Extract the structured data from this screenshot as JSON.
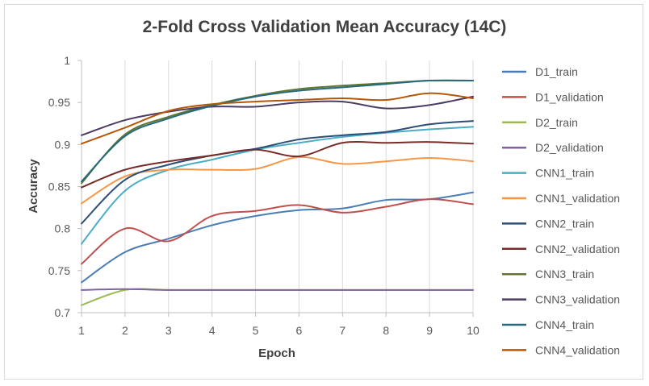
{
  "chart_data": {
    "type": "line",
    "title": "2-Fold Cross Validation Mean Accuracy (14C)",
    "xlabel": "Epoch",
    "ylabel": "Accuracy",
    "x": [
      1,
      2,
      3,
      4,
      5,
      6,
      7,
      8,
      9,
      10
    ],
    "xlim": [
      1,
      10
    ],
    "ylim": [
      0.7,
      1.0
    ],
    "yticks": [
      0.7,
      0.75,
      0.8,
      0.85,
      0.9,
      0.95,
      1.0
    ],
    "ytick_labels": [
      "0.7",
      "0.75",
      "0.8",
      "0.85",
      "0.9",
      "0.95",
      "1"
    ],
    "xtick_labels": [
      "1",
      "2",
      "3",
      "4",
      "5",
      "6",
      "7",
      "8",
      "9",
      "10"
    ],
    "grid": "vertical",
    "legend_position": "right",
    "series": [
      {
        "name": "D1_train",
        "color": "#4a7db6",
        "values": [
          0.736,
          0.772,
          0.788,
          0.804,
          0.815,
          0.822,
          0.824,
          0.834,
          0.835,
          0.843
        ]
      },
      {
        "name": "D1_validation",
        "color": "#c0504d",
        "values": [
          0.758,
          0.8,
          0.785,
          0.815,
          0.821,
          0.828,
          0.819,
          0.826,
          0.835,
          0.829
        ]
      },
      {
        "name": "D2_train",
        "color": "#9bbb59",
        "values": [
          0.709,
          0.727,
          0.727,
          0.727,
          0.727,
          0.727,
          0.727,
          0.727,
          0.727,
          0.727
        ]
      },
      {
        "name": "D2_validation",
        "color": "#8064a2",
        "values": [
          0.727,
          0.728,
          0.727,
          0.727,
          0.727,
          0.727,
          0.727,
          0.727,
          0.727,
          0.727
        ]
      },
      {
        "name": "CNN1_train",
        "color": "#4bacc6",
        "values": [
          0.782,
          0.845,
          0.87,
          0.882,
          0.894,
          0.902,
          0.909,
          0.914,
          0.918,
          0.921
        ]
      },
      {
        "name": "CNN1_validation",
        "color": "#f79646",
        "values": [
          0.83,
          0.862,
          0.87,
          0.87,
          0.871,
          0.885,
          0.877,
          0.88,
          0.884,
          0.88
        ]
      },
      {
        "name": "CNN2_train",
        "color": "#2c4d75",
        "values": [
          0.806,
          0.858,
          0.876,
          0.887,
          0.895,
          0.906,
          0.911,
          0.915,
          0.924,
          0.928
        ]
      },
      {
        "name": "CNN2_validation",
        "color": "#772c2a",
        "values": [
          0.849,
          0.87,
          0.88,
          0.887,
          0.894,
          0.886,
          0.902,
          0.902,
          0.903,
          0.901
        ]
      },
      {
        "name": "CNN3_train",
        "color": "#5f7530",
        "values": [
          0.854,
          0.912,
          0.933,
          0.947,
          0.958,
          0.966,
          0.97,
          0.973,
          0.976,
          0.976
        ]
      },
      {
        "name": "CNN3_validation",
        "color": "#4d3b62",
        "values": [
          0.911,
          0.929,
          0.939,
          0.945,
          0.945,
          0.95,
          0.951,
          0.943,
          0.947,
          0.957
        ]
      },
      {
        "name": "CNN4_train",
        "color": "#276a7c",
        "values": [
          0.856,
          0.91,
          0.931,
          0.946,
          0.957,
          0.964,
          0.968,
          0.972,
          0.976,
          0.976
        ]
      },
      {
        "name": "CNN4_validation",
        "color": "#b65708",
        "values": [
          0.901,
          0.92,
          0.94,
          0.948,
          0.951,
          0.953,
          0.955,
          0.953,
          0.961,
          0.955
        ]
      }
    ]
  }
}
